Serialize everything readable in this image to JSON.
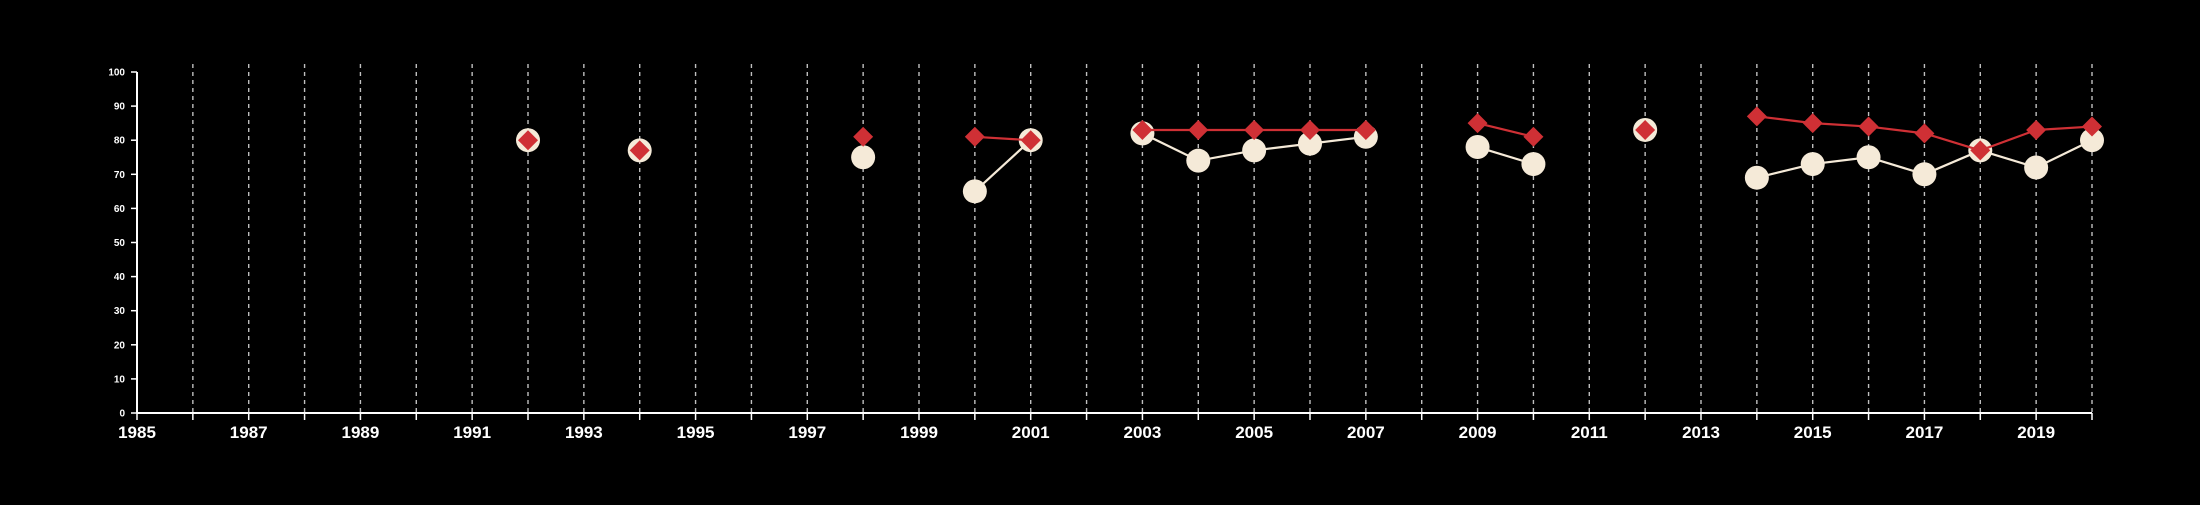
{
  "chart_data": {
    "type": "line",
    "title": "",
    "xlabel": "",
    "ylabel": "",
    "x_ticks": [
      "1985",
      "1987",
      "1989",
      "1991",
      "1993",
      "1995",
      "1997",
      "1999",
      "2001",
      "2003",
      "2005",
      "2007",
      "2009",
      "2011",
      "2013",
      "2015",
      "2017",
      "2019"
    ],
    "y_ticks": [
      "0",
      "10",
      "20",
      "30",
      "40",
      "50",
      "60",
      "70",
      "80",
      "90",
      "100"
    ],
    "xlim": [
      1985,
      2020
    ],
    "ylim": [
      0,
      100
    ],
    "grid": "vertical dashed at every year",
    "series": [
      {
        "marker": "circle",
        "color": "#f5ead8",
        "points": [
          [
            1992,
            80
          ],
          [
            1994,
            77
          ],
          [
            1998,
            75
          ],
          [
            2000,
            65
          ],
          [
            2001,
            80
          ],
          [
            2003,
            82
          ],
          [
            2004,
            74
          ],
          [
            2005,
            77
          ],
          [
            2006,
            79
          ],
          [
            2007,
            81
          ],
          [
            2009,
            78
          ],
          [
            2010,
            73
          ],
          [
            2012,
            83
          ],
          [
            2014,
            69
          ],
          [
            2015,
            73
          ],
          [
            2016,
            75
          ],
          [
            2017,
            70
          ],
          [
            2018,
            77
          ],
          [
            2019,
            72
          ],
          [
            2020,
            80
          ]
        ]
      },
      {
        "marker": "diamond",
        "color": "#cf3035",
        "points": [
          [
            1992,
            80
          ],
          [
            1994,
            77
          ],
          [
            1998,
            81
          ],
          [
            2000,
            81
          ],
          [
            2001,
            80
          ],
          [
            2003,
            83
          ],
          [
            2004,
            83
          ],
          [
            2005,
            83
          ],
          [
            2006,
            83
          ],
          [
            2007,
            83
          ],
          [
            2009,
            85
          ],
          [
            2010,
            81
          ],
          [
            2012,
            83
          ],
          [
            2014,
            87
          ],
          [
            2015,
            85
          ],
          [
            2016,
            84
          ],
          [
            2017,
            82
          ],
          [
            2018,
            77
          ],
          [
            2019,
            83
          ],
          [
            2020,
            84
          ]
        ]
      }
    ]
  }
}
